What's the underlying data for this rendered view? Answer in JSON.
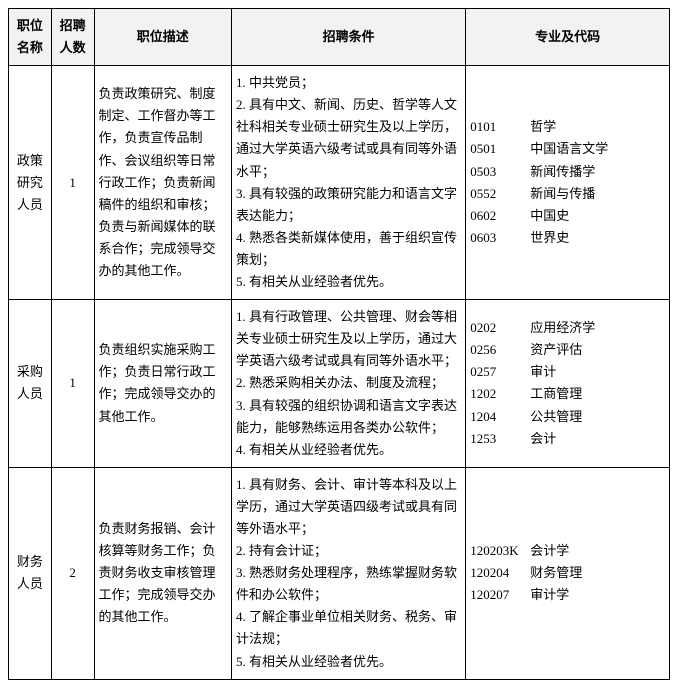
{
  "headers": {
    "position": "职位\n名称",
    "count": "招聘\n人数",
    "desc": "职位描述",
    "cond": "招聘条件",
    "major": "专业及代码"
  },
  "rows": [
    {
      "position": "政策\n研究\n人员",
      "count": "1",
      "desc": "负责政策研究、制度制定、工作督办等工作，负责宣传品制作、会议组织等日常行政工作；负责新闻稿件的组织和审核；负责与新闻媒体的联系合作；完成领导交办的其他工作。",
      "cond": "1. 中共党员；\n2. 具有中文、新闻、历史、哲学等人文社科相关专业硕士研究生及以上学历，通过大学英语六级考试或具有同等外语水平；\n3. 具有较强的政策研究能力和语言文字表达能力；\n4. 熟悉各类新媒体使用，善于组织宣传策划；\n5. 有相关从业经验者优先。",
      "majors": [
        {
          "code": "0101",
          "name": "哲学"
        },
        {
          "code": "0501",
          "name": "中国语言文学"
        },
        {
          "code": "0503",
          "name": "新闻传播学"
        },
        {
          "code": "0552",
          "name": "新闻与传播"
        },
        {
          "code": "0602",
          "name": "中国史"
        },
        {
          "code": "0603",
          "name": "世界史"
        }
      ]
    },
    {
      "position": "采购\n人员",
      "count": "1",
      "desc": "负责组织实施采购工作；负责日常行政工作；完成领导交办的其他工作。",
      "cond": "1. 具有行政管理、公共管理、财会等相关专业硕士研究生及以上学历，通过大学英语六级考试或具有同等外语水平；\n2. 熟悉采购相关办法、制度及流程；\n3. 具有较强的组织协调和语言文字表达能力，能够熟练运用各类办公软件；\n4. 有相关从业经验者优先。",
      "majors": [
        {
          "code": "0202",
          "name": "应用经济学"
        },
        {
          "code": "0256",
          "name": "资产评估"
        },
        {
          "code": "0257",
          "name": "审计"
        },
        {
          "code": "1202",
          "name": "工商管理"
        },
        {
          "code": "1204",
          "name": "公共管理"
        },
        {
          "code": "1253",
          "name": "会计"
        }
      ]
    },
    {
      "position": "财务\n人员",
      "count": "2",
      "desc": "负责财务报销、会计核算等财务工作；负责财务收支审核管理工作；完成领导交办的其他工作。",
      "cond": "1. 具有财务、会计、审计等本科及以上学历，通过大学英语四级考试或具有同等外语水平；\n2. 持有会计证；\n3. 熟悉财务处理程序，熟练掌握财务软件和办公软件；\n4. 了解企事业单位相关财务、税务、审计法规；\n5. 有相关从业经验者优先。",
      "majors": [
        {
          "code": "120203K",
          "name": "会计学"
        },
        {
          "code": "120204",
          "name": "财务管理"
        },
        {
          "code": "120207",
          "name": "审计学"
        }
      ]
    }
  ]
}
